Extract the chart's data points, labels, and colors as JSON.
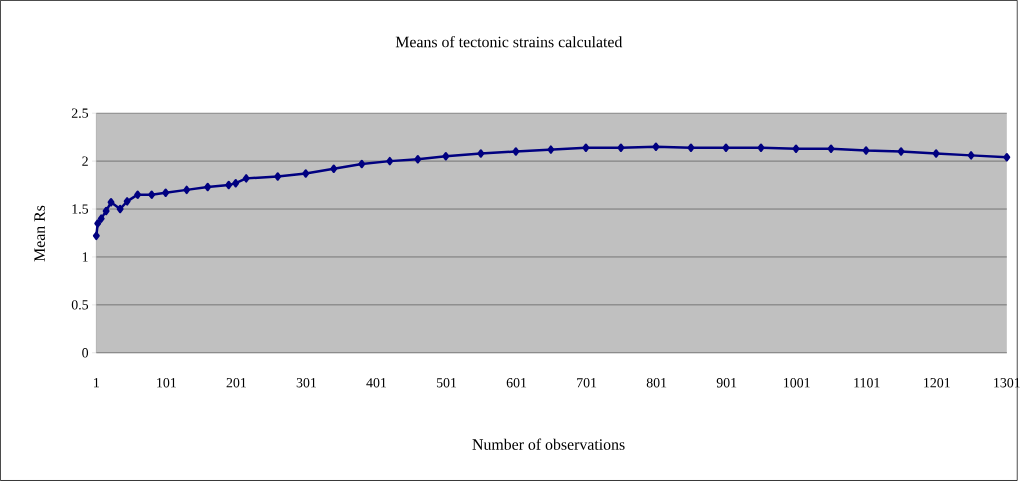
{
  "chart_data": {
    "type": "line",
    "title": "Means of tectonic strains calculated",
    "xlabel": "Number of observations",
    "ylabel": "Mean Rs",
    "x": [
      1,
      3,
      8,
      15,
      22,
      35,
      45,
      60,
      80,
      100,
      130,
      160,
      190,
      200,
      215,
      260,
      300,
      340,
      380,
      420,
      460,
      500,
      550,
      600,
      650,
      700,
      750,
      800,
      850,
      900,
      950,
      1000,
      1050,
      1100,
      1150,
      1200,
      1250,
      1301
    ],
    "series": [
      {
        "color": "#000080",
        "values": [
          1.22,
          1.35,
          1.4,
          1.48,
          1.57,
          1.5,
          1.58,
          1.65,
          1.65,
          1.67,
          1.7,
          1.73,
          1.75,
          1.77,
          1.82,
          1.84,
          1.87,
          1.92,
          1.97,
          2.0,
          2.02,
          2.05,
          2.08,
          2.1,
          2.12,
          2.14,
          2.14,
          2.15,
          2.14,
          2.14,
          2.14,
          2.13,
          2.13,
          2.11,
          2.1,
          2.08,
          2.06,
          2.04
        ]
      }
    ],
    "xlim": [
      1,
      1301
    ],
    "xticks": [
      1,
      101,
      201,
      301,
      401,
      501,
      601,
      701,
      801,
      901,
      1001,
      1101,
      1201,
      1301
    ],
    "ylim": [
      0,
      2.5
    ],
    "yticks": [
      0,
      0.5,
      1,
      1.5,
      2,
      2.5
    ],
    "grid": "y",
    "marker": "diamond",
    "line_style": "solid"
  }
}
